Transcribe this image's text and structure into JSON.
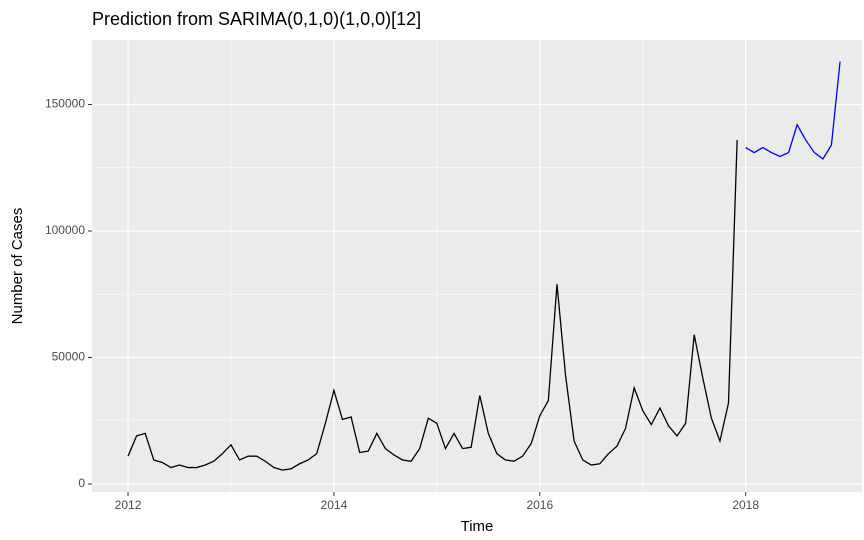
{
  "chart_data": {
    "type": "line",
    "title": "Prediction from SARIMA(0,1,0)(1,0,0)[12]",
    "x_label": "Time",
    "y_label": "Number of Cases",
    "series": [
      {
        "color": "#000000",
        "x": [
          2012,
          2012.083,
          2012.167,
          2012.25,
          2012.333,
          2012.417,
          2012.5,
          2012.583,
          2012.667,
          2012.75,
          2012.833,
          2012.917,
          2013,
          2013.083,
          2013.167,
          2013.25,
          2013.333,
          2013.417,
          2013.5,
          2013.583,
          2013.667,
          2013.75,
          2013.833,
          2013.917,
          2014,
          2014.083,
          2014.167,
          2014.25,
          2014.333,
          2014.417,
          2014.5,
          2014.583,
          2014.667,
          2014.75,
          2014.833,
          2014.917,
          2015,
          2015.083,
          2015.167,
          2015.25,
          2015.333,
          2015.417,
          2015.5,
          2015.583,
          2015.667,
          2015.75,
          2015.833,
          2015.917,
          2016,
          2016.083,
          2016.167,
          2016.25,
          2016.333,
          2016.417,
          2016.5,
          2016.583,
          2016.667,
          2016.75,
          2016.833,
          2016.917,
          2017,
          2017.083,
          2017.167,
          2017.25,
          2017.333,
          2017.417,
          2017.5,
          2017.583,
          2017.667,
          2017.75,
          2017.833,
          2017.917
        ],
        "values": [
          11000,
          19000,
          20000,
          9500,
          8500,
          6500,
          7500,
          6500,
          6500,
          7500,
          9000,
          12000,
          15500,
          9500,
          11000,
          11000,
          9000,
          6500,
          5500,
          6000,
          8000,
          9500,
          12000,
          24000,
          37000,
          25500,
          26500,
          12500,
          13000,
          20000,
          14000,
          11500,
          9500,
          9000,
          14000,
          26000,
          24000,
          14000,
          20000,
          14000,
          14500,
          35000,
          20000,
          12000,
          9500,
          9000,
          11000,
          16000,
          27000,
          33000,
          79000,
          43000,
          17000,
          9500,
          7500,
          8000,
          12000,
          15000,
          22000,
          38000,
          29000,
          23500,
          30000,
          23000,
          19000,
          24000,
          59000,
          42000,
          26000,
          17000,
          32000,
          136000
        ]
      },
      {
        "color": "#0000ff",
        "x": [
          2018,
          2018.083,
          2018.167,
          2018.25,
          2018.333,
          2018.417,
          2018.5,
          2018.583,
          2018.667,
          2018.75,
          2018.833,
          2018.917
        ],
        "values": [
          133000,
          131000,
          133000,
          131000,
          129500,
          131000,
          142000,
          136000,
          131000,
          128500,
          134000,
          167000
        ]
      }
    ],
    "xlim": [
      2011.65,
      2019.13
    ],
    "xticks": [
      2012,
      2014,
      2016,
      2018
    ],
    "ylim": [
      -3160,
      175500
    ],
    "yticks": [
      0,
      50000,
      100000,
      150000
    ],
    "grid": true
  }
}
